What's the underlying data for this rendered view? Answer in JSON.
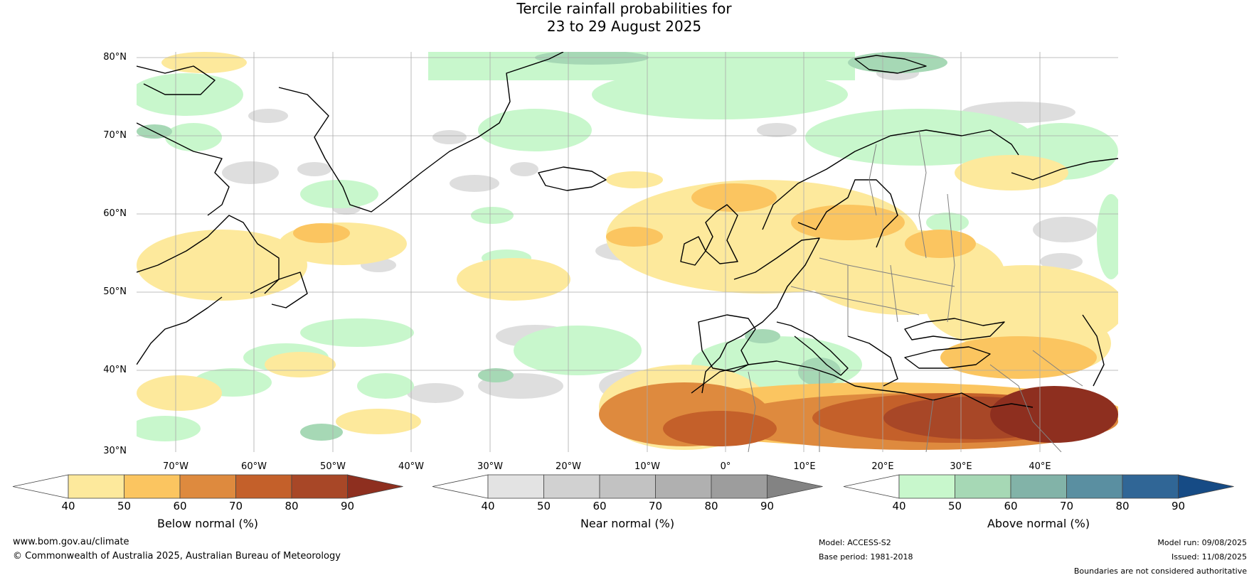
{
  "title": {
    "line1": "Tercile rainfall probabilities for",
    "line2": "23 to 29 August 2025"
  },
  "map": {
    "lat_labels": [
      "80°N",
      "70°N",
      "60°N",
      "50°N",
      "40°N",
      "30°N"
    ],
    "lon_labels": [
      "70°W",
      "60°W",
      "50°W",
      "40°W",
      "30°W",
      "20°W",
      "10°W",
      "0°",
      "10°E",
      "20°E",
      "30°E",
      "40°E"
    ],
    "extent": {
      "lon_min": -75,
      "lon_max": 50,
      "lat_min": 30,
      "lat_max": 81
    },
    "colors": {
      "ocean": "#ffffff",
      "coast": "#000000",
      "borders": "#808080",
      "grid": "#aaaaaa"
    }
  },
  "colorbars": [
    {
      "label": "Below normal (%)",
      "ticks": [
        "40",
        "50",
        "60",
        "70",
        "80",
        "90"
      ],
      "colors": [
        "#ffffff",
        "#fde99c",
        "#fbc560",
        "#de8a3e",
        "#c4602a",
        "#a84727",
        "#8e2f1f"
      ]
    },
    {
      "label": "Near normal (%)",
      "ticks": [
        "40",
        "50",
        "60",
        "70",
        "80",
        "90"
      ],
      "colors": [
        "#ffffff",
        "#e3e3e3",
        "#d1d1d1",
        "#c2c2c2",
        "#b0b0b0",
        "#9d9d9d",
        "#838383"
      ]
    },
    {
      "label": "Above normal (%)",
      "ticks": [
        "40",
        "50",
        "60",
        "70",
        "80",
        "90"
      ],
      "colors": [
        "#ffffff",
        "#c8f7cc",
        "#a6d8b5",
        "#82b3a8",
        "#5a8fa1",
        "#306696",
        "#164b85"
      ]
    }
  ],
  "footer": {
    "website": "www.bom.gov.au/climate",
    "copyright": "© Commonwealth of Australia 2025, Australian Bureau of Meteorology",
    "model": "Model: ACCESS-S2",
    "base_period": "Base period: 1981-2018",
    "model_run": "Model run: 09/08/2025",
    "issued": "Issued: 11/08/2025",
    "disclaimer": "Boundaries are not considered authoritative"
  }
}
